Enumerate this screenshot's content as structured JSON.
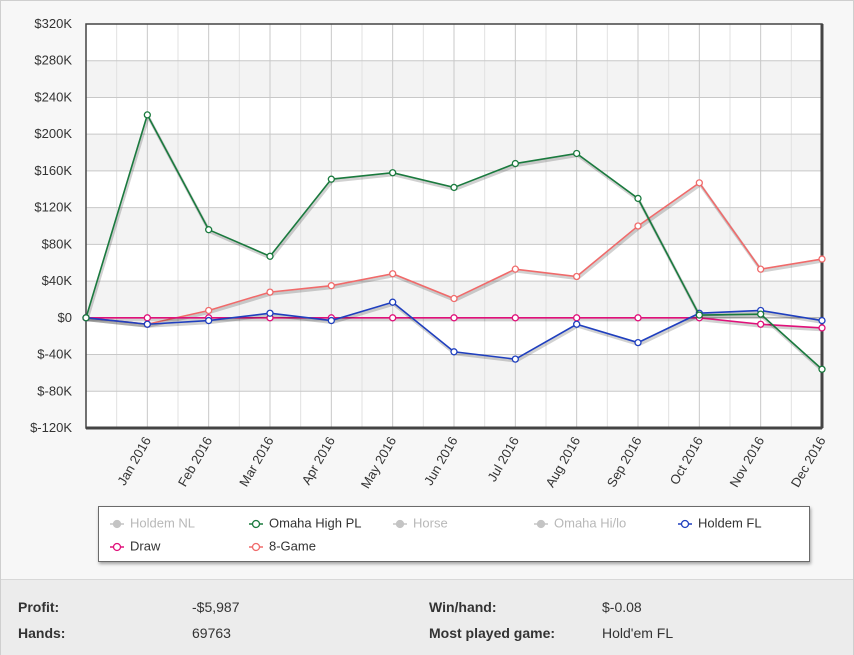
{
  "chart_data": {
    "type": "line",
    "x_labels": [
      "",
      "Jan 2016",
      "Feb 2016",
      "Mar 2016",
      "Apr 2016",
      "May 2016",
      "Jun 2016",
      "Jul 2016",
      "Aug 2016",
      "Sep 2016",
      "Oct 2016",
      "Nov 2016",
      "Dec 2016"
    ],
    "ylim": [
      -120000,
      320000
    ],
    "y_ticks": [
      320000,
      280000,
      240000,
      200000,
      160000,
      120000,
      80000,
      40000,
      0,
      -40000,
      -80000,
      -120000
    ],
    "y_tick_labels": [
      "$320K",
      "$280K",
      "$240K",
      "$200K",
      "$160K",
      "$120K",
      "$80K",
      "$40K",
      "$0",
      "$-40K",
      "$-80K",
      "$-120K"
    ],
    "grid": true,
    "legend_placement": "bottom",
    "series": [
      {
        "name": "Holdem NL",
        "visible": false,
        "color": "#bbbbbb",
        "values": []
      },
      {
        "name": "Omaha High PL",
        "visible": true,
        "color": "#1a7a3e",
        "values": [
          0,
          221000,
          96000,
          67000,
          151000,
          158000,
          142000,
          168000,
          179000,
          130000,
          3000,
          4000,
          -56000
        ]
      },
      {
        "name": "Horse",
        "visible": false,
        "color": "#bbbbbb",
        "values": []
      },
      {
        "name": "Omaha Hi/lo",
        "visible": false,
        "color": "#bbbbbb",
        "values": []
      },
      {
        "name": "Holdem FL",
        "visible": true,
        "color": "#1f3fbf",
        "values": [
          0,
          -7000,
          -3000,
          5000,
          -3000,
          17000,
          -37000,
          -45000,
          -7000,
          -27000,
          5000,
          8000,
          -3000
        ]
      },
      {
        "name": "Draw",
        "visible": true,
        "color": "#e0107a",
        "values": [
          0,
          0,
          0,
          0,
          0,
          0,
          0,
          0,
          0,
          0,
          0,
          -7000,
          -11000
        ]
      },
      {
        "name": "8-Game",
        "visible": true,
        "color": "#f06a6a",
        "values": [
          0,
          -7000,
          8000,
          28000,
          35000,
          48000,
          21000,
          53000,
          45000,
          100000,
          147000,
          53000,
          64000
        ]
      }
    ]
  },
  "stats": {
    "profit_label": "Profit:",
    "profit_value": "-$5,987",
    "hands_label": "Hands:",
    "hands_value": "69763",
    "win_label": "Win/hand:",
    "win_value": "$-0.08",
    "game_label": "Most played game:",
    "game_value": "Hold'em FL"
  }
}
